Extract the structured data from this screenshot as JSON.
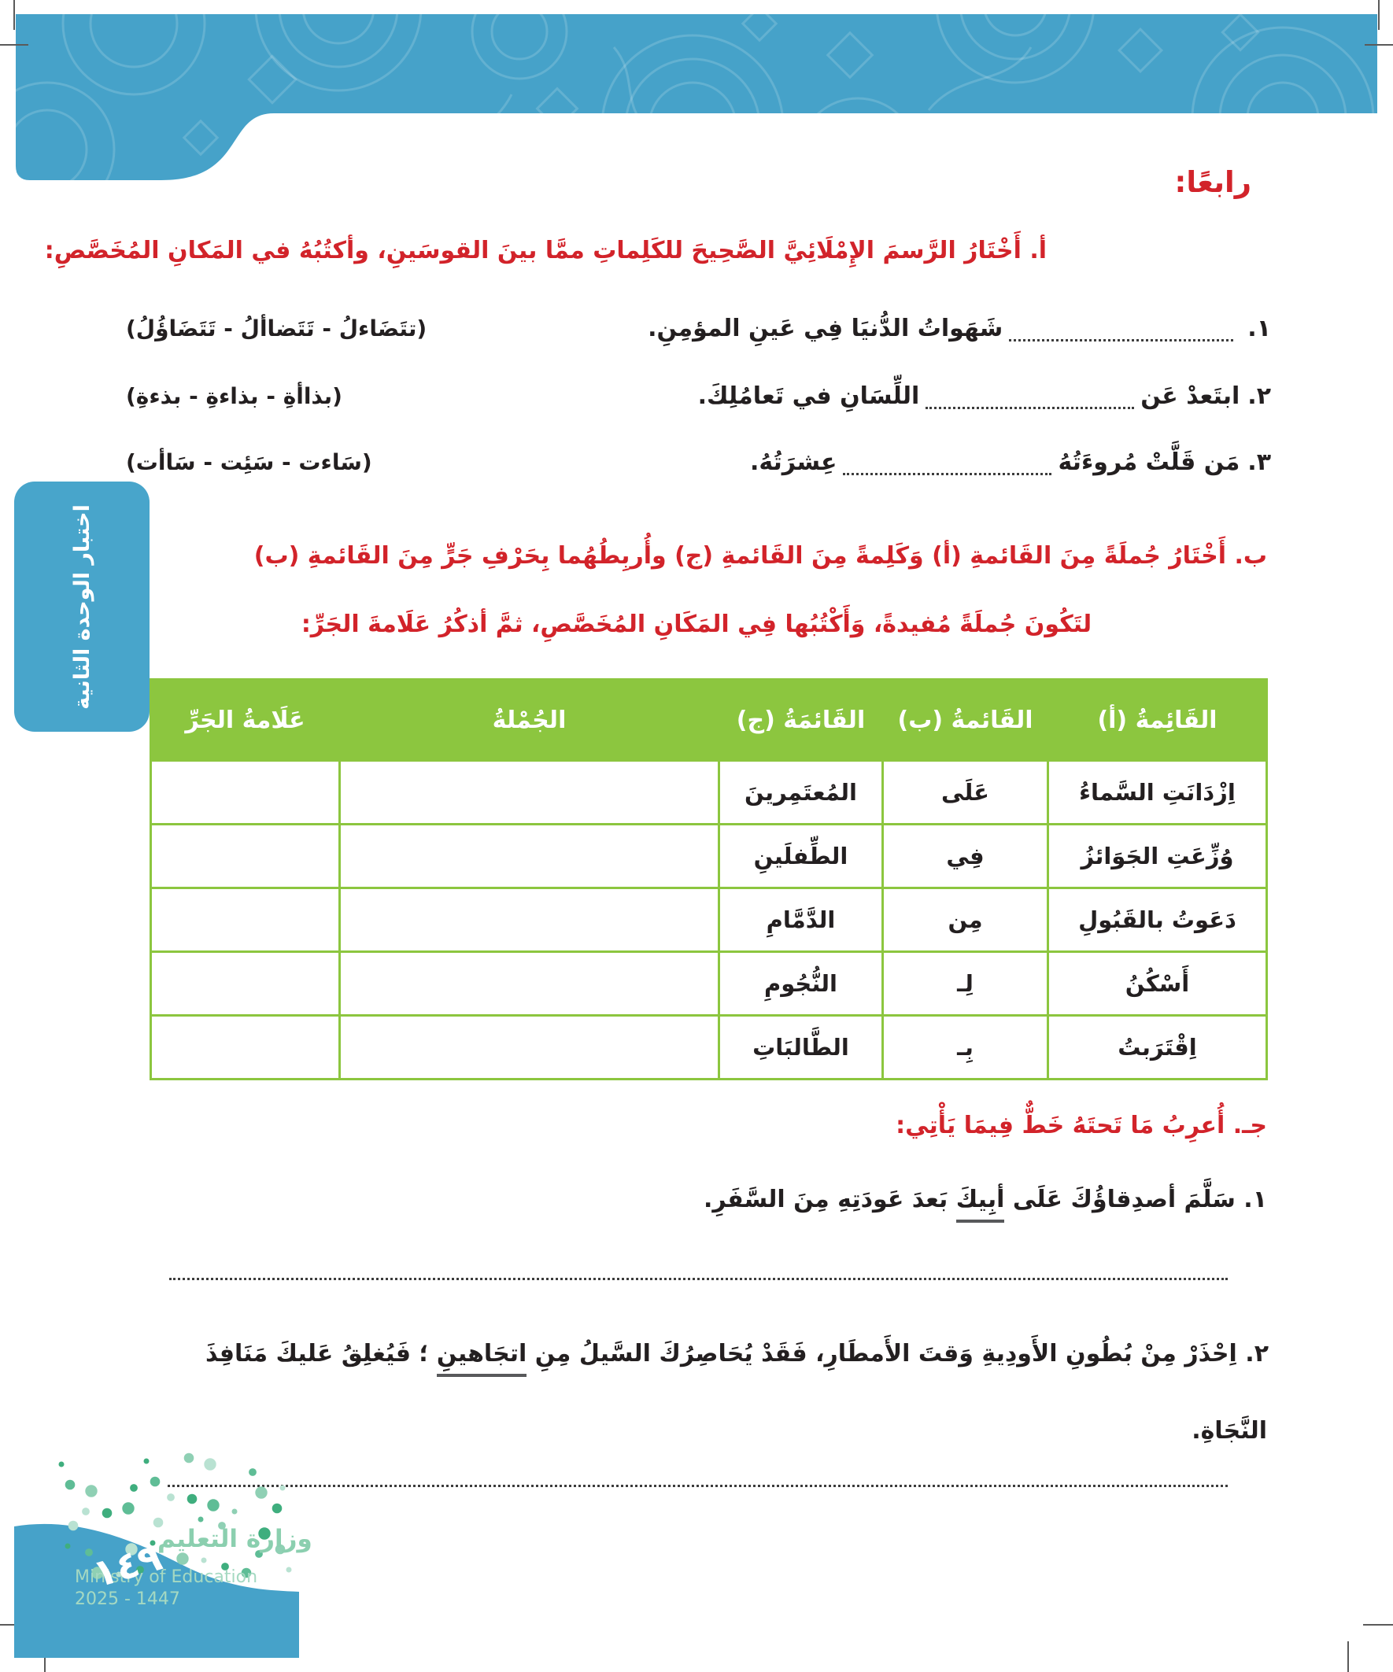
{
  "page": {
    "section_heading": "رابعًا:",
    "sidebar_tab_label": "اختبار الوحدة الثانية",
    "page_number": "١٤٩"
  },
  "colors": {
    "accent_blue": "#48a5cb",
    "accent_green": "#8cc63f",
    "accent_red": "#d2232a"
  },
  "section_a": {
    "label": "أ.",
    "instruction": "أَخْتَارُ الرَّسمَ الإِمْلَائِيَّ الصَّحِيحَ للكَلِماتِ ممَّا بينَ القوسَينِ، وأكتُبُهُ في المَكانِ المُخَصَّصِ:",
    "items": [
      {
        "number": "١.",
        "text_before_blank": "",
        "text_after_blank": "شَهَواتُ الدُّنيَا فِي عَينِ المؤمِنِ.",
        "options": "(تتَضَاءلُ - تَتَضاألُ - تَتَضَاؤُلُ)"
      },
      {
        "number": "٢.",
        "text_before_blank": "ابتَعدْ عَن",
        "text_after_blank": "اللِّسَانِ في تَعامُلِكَ.",
        "options": "(بذاأةِ - بذاءةِ - بذءةِ)"
      },
      {
        "number": "٣.",
        "text_before_blank": "مَن قَلَّتْ مُروءَتُهُ",
        "text_after_blank": "عِشرَتُهُ.",
        "options": "(سَاءت - سَئِت - سَاأت)"
      }
    ]
  },
  "section_b": {
    "label": "ب.",
    "instruction_line1": "أَخْتَارُ جُملَةً مِنَ القَائمةِ (أ) وَكَلِمةً مِنَ القَائمةِ (ج) وأُربِطُهُما بِحَرْفِ جَرٍّ مِنَ القَائمةِ (ب)",
    "instruction_line2": "لتَكُونَ جُملَةً مُفيدةً، وَأَكْتُبُها فِي المَكَانِ المُخَصَّصِ، ثمَّ أذكُرُ عَلَامةَ الجَرِّ:",
    "table": {
      "headers": {
        "list_a": "القَائِمةُ (أ)",
        "list_b": "القَائمةُ (ب)",
        "list_c": "القَائمَةُ (ج)",
        "sentence": "الجُمْلةُ",
        "jar_mark": "عَلَامةُ الجَرِّ"
      },
      "rows": [
        {
          "list_a": "اِزْدَانَتِ السَّماءُ",
          "list_b": "عَلَى",
          "list_c": "المُعتَمِرينَ",
          "sentence": "",
          "jar_mark": ""
        },
        {
          "list_a": "وُزِّعَتِ الجَوَائزُ",
          "list_b": "فِي",
          "list_c": "الطِّفلَينِ",
          "sentence": "",
          "jar_mark": ""
        },
        {
          "list_a": "دَعَوتُ بالقَبُولِ",
          "list_b": "مِن",
          "list_c": "الدَّمَّامِ",
          "sentence": "",
          "jar_mark": ""
        },
        {
          "list_a": "أَسْكُنُ",
          "list_b": "لِـ",
          "list_c": "النُّجُومِ",
          "sentence": "",
          "jar_mark": ""
        },
        {
          "list_a": "اِقْتَرَبتُ",
          "list_b": "بِـ",
          "list_c": "الطَّالبَاتِ",
          "sentence": "",
          "jar_mark": ""
        }
      ]
    }
  },
  "section_c": {
    "label": "جـ.",
    "instruction": "أُعرِبُ مَا تَحتَهُ خَطٌّ فِيمَا يَأْتِي:",
    "items": [
      {
        "number": "١.",
        "pre": "سَلَّمَ أصدِقاؤُكَ عَلَى",
        "underlined": "أبِيكَ",
        "post": "بَعدَ عَودَتِهِ مِنَ السَّفَرِ.",
        "line2": ""
      },
      {
        "number": "٢.",
        "pre": "اِحْذَرْ مِنْ بُطُونِ الأَودِيةِ وَقتَ الأَمطَارِ، فَقَدْ يُحَاصِرُكَ السَّيلُ مِنِ",
        "underlined": "اتجَاهينِ",
        "post": "؛ فَيُغلِقُ عَليكَ مَنَافِذَ",
        "line2": "النَّجَاةِ."
      }
    ]
  },
  "footer": {
    "ministry_ar": "وزارة التعليم",
    "ministry_en": "Ministry of Education",
    "year": "2025 - 1447"
  }
}
